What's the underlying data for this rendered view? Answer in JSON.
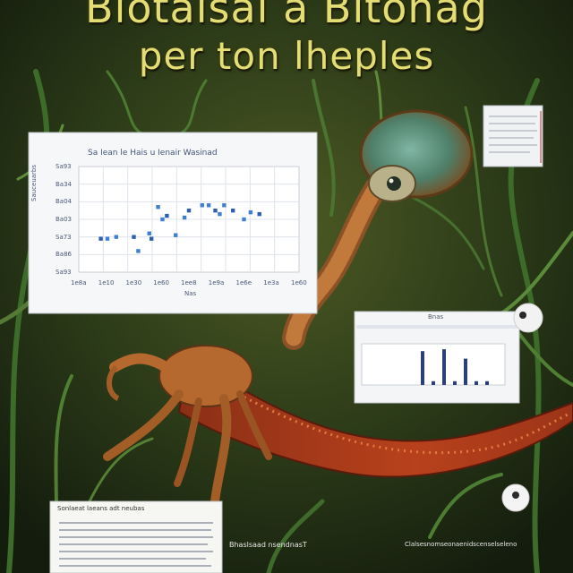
{
  "poster": {
    "title_line1": "Biotaisal a Bitonag",
    "title_line2": "per ton lheples"
  },
  "main_chart": {
    "title": "Sa Iean le Hais u Ienair Wasinad",
    "y_ticks": [
      "Sa93",
      "Ba34",
      "Ba04",
      "Ba03",
      "Sa73",
      "Ba86",
      "Sa93"
    ],
    "x_ticks": [
      "1e8a",
      "1e10",
      "1e30",
      "1e60",
      "1ee8",
      "1e9a",
      "1e6e",
      "1e3a",
      "1e60"
    ],
    "x_label": "Nas",
    "y_label": "Sauceuarbs"
  },
  "chart_data": {
    "type": "scatter",
    "title": "Sa Iean le Hais u Ienair Wasinad",
    "series": [
      {
        "x": [
          1.0,
          1.3,
          1.7,
          2.5,
          2.7,
          3.2,
          3.3,
          3.6,
          3.8,
          4.0,
          4.4,
          4.8,
          5.0,
          5.6,
          5.9,
          6.2,
          6.4,
          6.6,
          7.0,
          7.5,
          7.8,
          8.2
        ],
        "y": [
          1.9,
          1.9,
          2.0,
          2.0,
          1.2,
          2.2,
          1.9,
          3.7,
          3.0,
          3.2,
          2.1,
          3.1,
          3.5,
          3.8,
          3.8,
          3.5,
          3.3,
          3.8,
          3.5,
          3.0,
          3.4,
          3.3
        ]
      }
    ],
    "xlim": [
      0,
      10
    ],
    "ylim": [
      0,
      6
    ],
    "grid": true
  },
  "side_chart": {
    "header": "Bnas",
    "bars": [
      0.9,
      0.1,
      0.95,
      0.1,
      0.7,
      0.1,
      0.1
    ]
  },
  "doc_panel": {
    "title": "Sonlaeat laeans adt neubas",
    "caption": "Bhaslsaad nsendnasT"
  },
  "bottom_caption": "Clalsesnomseonaenidscenselseleno"
}
